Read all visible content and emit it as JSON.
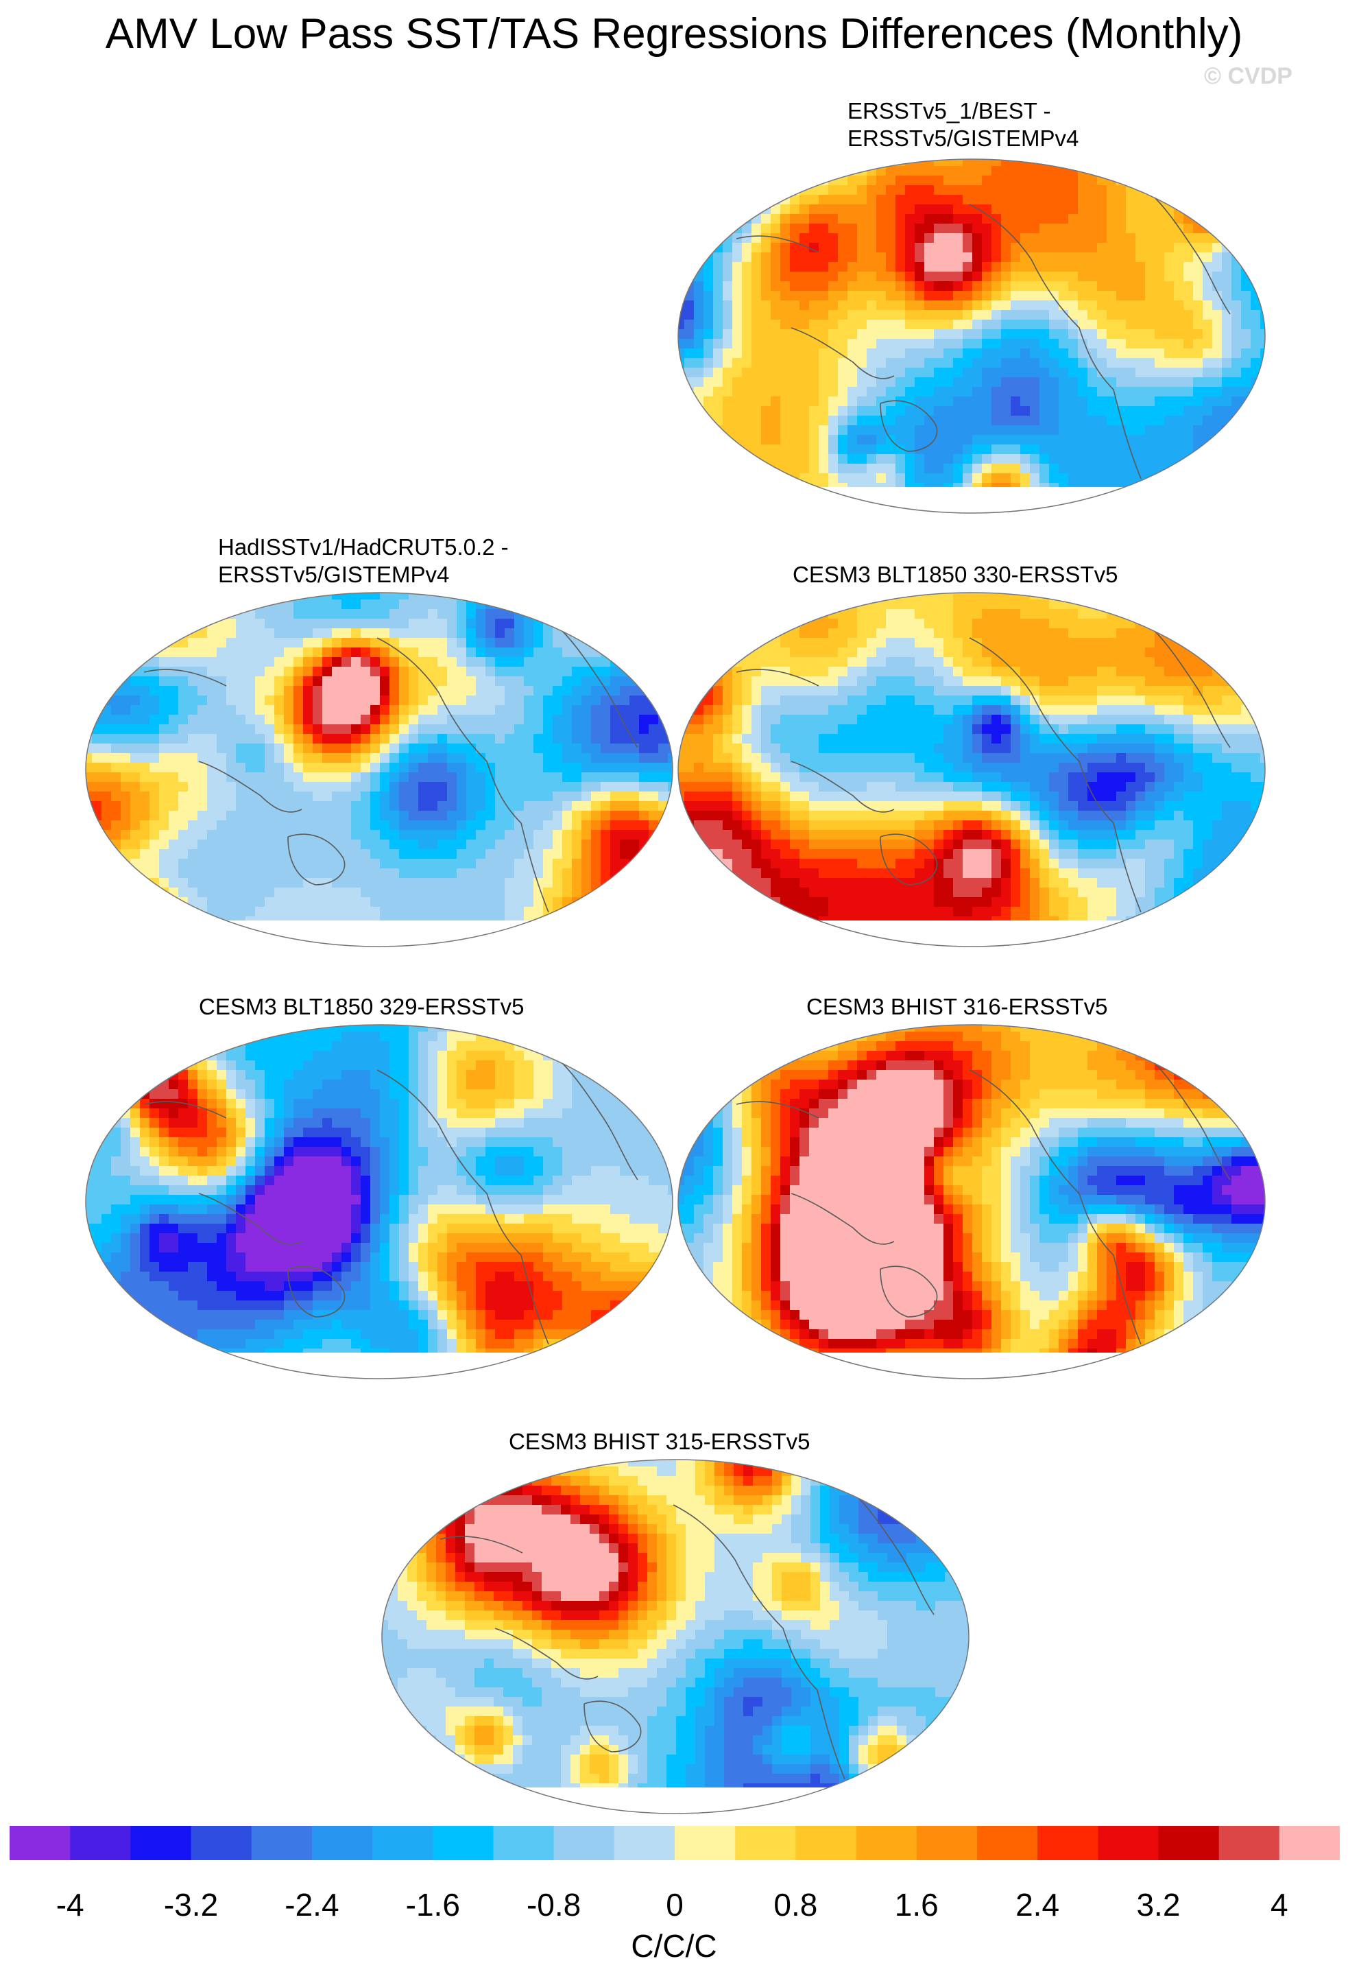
{
  "title": "AMV Low Pass SST/TAS Regressions Differences (Monthly)",
  "watermark": "© CVDP",
  "projection": "robinson",
  "panels": [
    {
      "id": "ersstv5-1-best",
      "title_lines": [
        "ERSSTv5_1/BEST -",
        "ERSSTv5/GISTEMPv4"
      ],
      "pattern": "a"
    },
    {
      "id": "hadisst-hadcrut",
      "title_lines": [
        "HadISSTv1/HadCRUT5.0.2 -",
        "ERSSTv5/GISTEMPv4"
      ],
      "pattern": "b"
    },
    {
      "id": "cesm3-blt1850-330",
      "title_lines": [
        "CESM3 BLT1850 330-ERSSTv5"
      ],
      "pattern": "c"
    },
    {
      "id": "cesm3-blt1850-329",
      "title_lines": [
        "CESM3 BLT1850 329-ERSSTv5"
      ],
      "pattern": "d"
    },
    {
      "id": "cesm3-bhist-316",
      "title_lines": [
        "CESM3 BHIST 316-ERSSTv5"
      ],
      "pattern": "e"
    },
    {
      "id": "cesm3-bhist-315",
      "title_lines": [
        "CESM3 BHIST 315-ERSSTv5"
      ],
      "pattern": "f"
    }
  ],
  "colorbar": {
    "units": "C/C/C",
    "colors": [
      "#8a2be2",
      "#4b1ee6",
      "#1414f5",
      "#2d4ee0",
      "#3c78e6",
      "#2896f0",
      "#1eaaf5",
      "#00c0ff",
      "#5ac8f5",
      "#96cdf0",
      "#b9dcf5",
      "#fff5a0",
      "#ffdc46",
      "#ffc828",
      "#ffaa14",
      "#ff8c0a",
      "#ff6400",
      "#ff2800",
      "#eb0a0a",
      "#c80000",
      "#dc4646",
      "#ffb4b4"
    ],
    "ticks": [
      "-4",
      "-3.2",
      "-2.4",
      "-1.6",
      "-0.8",
      "0",
      "0.8",
      "1.6",
      "2.4",
      "3.2",
      "4"
    ]
  }
}
